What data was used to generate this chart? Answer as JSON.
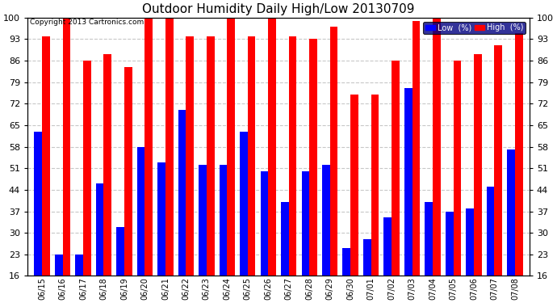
{
  "title": "Outdoor Humidity Daily High/Low 20130709",
  "copyright": "Copyright 2013 Cartronics.com",
  "dates": [
    "06/15",
    "06/16",
    "06/17",
    "06/18",
    "06/19",
    "06/20",
    "06/21",
    "06/22",
    "06/23",
    "06/24",
    "06/25",
    "06/26",
    "06/27",
    "06/28",
    "06/29",
    "06/30",
    "07/01",
    "07/02",
    "07/03",
    "07/04",
    "07/05",
    "07/06",
    "07/07",
    "07/08"
  ],
  "high": [
    94,
    100,
    86,
    88,
    84,
    100,
    100,
    94,
    94,
    100,
    94,
    100,
    94,
    93,
    97,
    75,
    75,
    86,
    99,
    100,
    86,
    88,
    91,
    95
  ],
  "low": [
    63,
    23,
    23,
    46,
    32,
    58,
    53,
    70,
    52,
    52,
    63,
    50,
    40,
    50,
    52,
    25,
    28,
    35,
    77,
    40,
    37,
    38,
    45,
    57
  ],
  "high_color": "#FF0000",
  "low_color": "#0000FF",
  "bg_color": "#FFFFFF",
  "grid_color": "#C8C8C8",
  "yticks": [
    16,
    23,
    30,
    37,
    44,
    51,
    58,
    65,
    72,
    79,
    86,
    93,
    100
  ],
  "ylim_min": 16,
  "ylim_max": 100,
  "bar_width": 0.38,
  "legend_bg": "#000080"
}
